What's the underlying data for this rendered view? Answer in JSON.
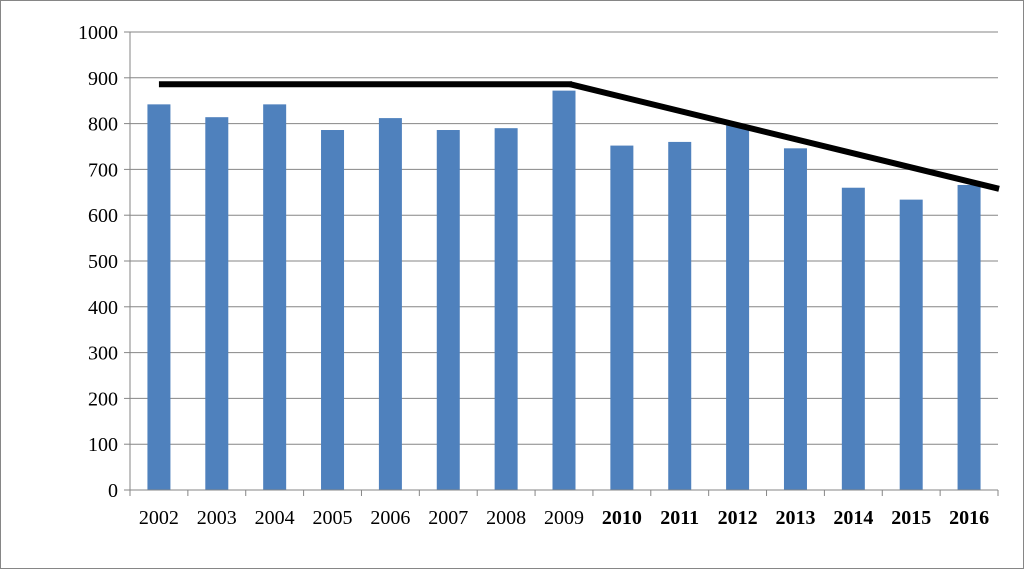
{
  "chart_data": {
    "type": "bar",
    "title": "",
    "xlabel": "",
    "ylabel": "",
    "categories": [
      "2002",
      "2003",
      "2004",
      "2005",
      "2006",
      "2007",
      "2008",
      "2009",
      "2010",
      "2011",
      "2012",
      "2013",
      "2014",
      "2015",
      "2016"
    ],
    "bold_categories": [
      "2010",
      "2011",
      "2012",
      "2013",
      "2014",
      "2015",
      "2016"
    ],
    "series": [
      {
        "values": [
          842,
          814,
          842,
          786,
          812,
          786,
          790,
          872,
          752,
          760,
          796,
          746,
          660,
          634,
          666
        ]
      }
    ],
    "ylim": [
      0,
      1000
    ],
    "yticks": [
      0,
      100,
      200,
      300,
      400,
      500,
      600,
      700,
      800,
      900,
      1000
    ],
    "grid": true,
    "legend": "none",
    "trend_lines": [
      {
        "from": [
          "2002",
          886
        ],
        "to": [
          "2009",
          886
        ]
      },
      {
        "from": [
          "2009",
          886
        ],
        "to": [
          "2016",
          675
        ]
      }
    ],
    "colors": {
      "bar": "#4f81bd",
      "trend": "#000000",
      "grid": "#868686",
      "axis": "#868686"
    }
  }
}
